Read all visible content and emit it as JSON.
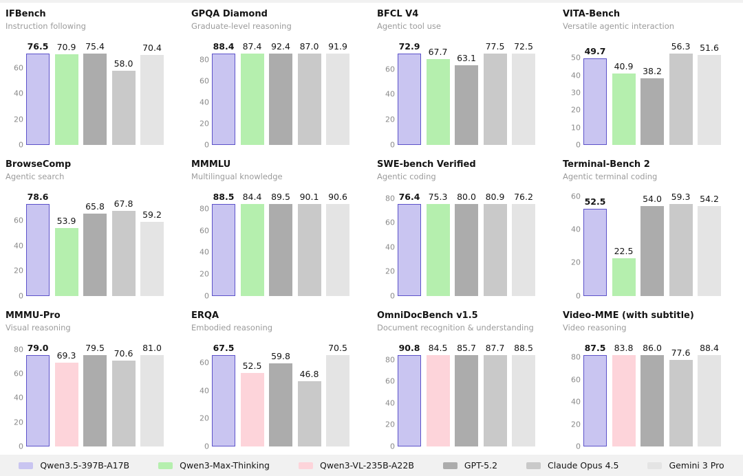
{
  "page": {
    "background": "#ffffff",
    "top_strip_color": "#f1f1f1",
    "legend_band_color": "#f1f1f1"
  },
  "models": [
    {
      "name": "Qwen3.5-397B-A17B",
      "fill": "#c9c5f1",
      "border": "#5b51c9",
      "highlight": true
    },
    {
      "name": "Qwen3-Max-Thinking",
      "fill": "#b5efae",
      "border": null,
      "highlight": false
    },
    {
      "name": "Qwen3-VL-235B-A22B",
      "fill": "#fdd4da",
      "border": null,
      "highlight": false
    },
    {
      "name": "GPT-5.2",
      "fill": "#acacac",
      "border": null,
      "highlight": false
    },
    {
      "name": "Claude Opus 4.5",
      "fill": "#c9c9c9",
      "border": null,
      "highlight": false
    },
    {
      "name": "Gemini 3 Pro",
      "fill": "#e4e4e4",
      "border": null,
      "highlight": false
    }
  ],
  "chart_data": [
    {
      "type": "bar",
      "title": "IFBench",
      "subtitle": "Instruction following",
      "yticks": [
        0,
        20,
        40,
        60
      ],
      "ylim": [
        0,
        80.3
      ],
      "grid": false,
      "legend_position": "bottom-shared",
      "bars": [
        {
          "model": "Qwen3.5-397B-A17B",
          "model_index": 0,
          "value": 76.5
        },
        {
          "model": "Qwen3-Max-Thinking",
          "model_index": 1,
          "value": 70.9
        },
        {
          "model": "GPT-5.2",
          "model_index": 3,
          "value": 75.4
        },
        {
          "model": "Claude Opus 4.5",
          "model_index": 4,
          "value": 58.0
        },
        {
          "model": "Gemini 3 Pro",
          "model_index": 5,
          "value": 70.4
        }
      ]
    },
    {
      "type": "bar",
      "title": "GPQA Diamond",
      "subtitle": "Graduate-level reasoning",
      "yticks": [
        0,
        20,
        40,
        60,
        80
      ],
      "ylim": [
        0,
        97.0
      ],
      "grid": false,
      "legend_position": "bottom-shared",
      "bars": [
        {
          "model": "Qwen3.5-397B-A17B",
          "model_index": 0,
          "value": 88.4
        },
        {
          "model": "Qwen3-Max-Thinking",
          "model_index": 1,
          "value": 87.4
        },
        {
          "model": "GPT-5.2",
          "model_index": 3,
          "value": 92.4
        },
        {
          "model": "Claude Opus 4.5",
          "model_index": 4,
          "value": 87.0
        },
        {
          "model": "Gemini 3 Pro",
          "model_index": 5,
          "value": 91.9
        }
      ]
    },
    {
      "type": "bar",
      "title": "BFCL V4",
      "subtitle": "Agentic tool use",
      "yticks": [
        0,
        20,
        40,
        60
      ],
      "ylim": [
        0,
        81.4
      ],
      "grid": false,
      "legend_position": "bottom-shared",
      "bars": [
        {
          "model": "Qwen3.5-397B-A17B",
          "model_index": 0,
          "value": 72.9
        },
        {
          "model": "Qwen3-Max-Thinking",
          "model_index": 1,
          "value": 67.7
        },
        {
          "model": "GPT-5.2",
          "model_index": 3,
          "value": 63.1
        },
        {
          "model": "Claude Opus 4.5",
          "model_index": 4,
          "value": 77.5
        },
        {
          "model": "Gemini 3 Pro",
          "model_index": 5,
          "value": 72.5
        }
      ]
    },
    {
      "type": "bar",
      "title": "VITA-Bench",
      "subtitle": "Versatile agentic interaction",
      "yticks": [
        0,
        10,
        20,
        30,
        40,
        50
      ],
      "ylim": [
        0,
        59.1
      ],
      "grid": false,
      "legend_position": "bottom-shared",
      "bars": [
        {
          "model": "Qwen3.5-397B-A17B",
          "model_index": 0,
          "value": 49.7
        },
        {
          "model": "Qwen3-Max-Thinking",
          "model_index": 1,
          "value": 40.9
        },
        {
          "model": "GPT-5.2",
          "model_index": 3,
          "value": 38.2
        },
        {
          "model": "Claude Opus 4.5",
          "model_index": 4,
          "value": 56.3
        },
        {
          "model": "Gemini 3 Pro",
          "model_index": 5,
          "value": 51.6
        }
      ]
    },
    {
      "type": "bar",
      "title": "BrowseComp",
      "subtitle": "Agentic search",
      "yticks": [
        0,
        20,
        40,
        60
      ],
      "ylim": [
        0,
        82.5
      ],
      "grid": false,
      "legend_position": "bottom-shared",
      "bars": [
        {
          "model": "Qwen3.5-397B-A17B",
          "model_index": 0,
          "value": 78.6
        },
        {
          "model": "Qwen3-Max-Thinking",
          "model_index": 1,
          "value": 53.9
        },
        {
          "model": "GPT-5.2",
          "model_index": 3,
          "value": 65.8
        },
        {
          "model": "Claude Opus 4.5",
          "model_index": 4,
          "value": 67.8
        },
        {
          "model": "Gemini 3 Pro",
          "model_index": 5,
          "value": 59.2
        }
      ]
    },
    {
      "type": "bar",
      "title": "MMMLU",
      "subtitle": "Multilingual knowledge",
      "yticks": [
        0,
        20,
        40,
        60,
        80
      ],
      "ylim": [
        0,
        95.1
      ],
      "grid": false,
      "legend_position": "bottom-shared",
      "bars": [
        {
          "model": "Qwen3.5-397B-A17B",
          "model_index": 0,
          "value": 88.5
        },
        {
          "model": "Qwen3-Max-Thinking",
          "model_index": 1,
          "value": 84.4
        },
        {
          "model": "GPT-5.2",
          "model_index": 3,
          "value": 89.5
        },
        {
          "model": "Claude Opus 4.5",
          "model_index": 4,
          "value": 90.1
        },
        {
          "model": "Gemini 3 Pro",
          "model_index": 5,
          "value": 90.6
        }
      ]
    },
    {
      "type": "bar",
      "title": "SWE-bench Verified",
      "subtitle": "Agentic coding",
      "yticks": [
        0,
        20,
        40,
        60,
        80
      ],
      "ylim": [
        0,
        84.9
      ],
      "grid": false,
      "legend_position": "bottom-shared",
      "bars": [
        {
          "model": "Qwen3.5-397B-A17B",
          "model_index": 0,
          "value": 76.4
        },
        {
          "model": "Qwen3-Max-Thinking",
          "model_index": 1,
          "value": 75.3
        },
        {
          "model": "GPT-5.2",
          "model_index": 3,
          "value": 80.0
        },
        {
          "model": "Claude Opus 4.5",
          "model_index": 4,
          "value": 80.9
        },
        {
          "model": "Gemini 3 Pro",
          "model_index": 5,
          "value": 76.2
        }
      ]
    },
    {
      "type": "bar",
      "title": "Terminal-Bench 2",
      "subtitle": "Agentic terminal coding",
      "yticks": [
        0,
        20,
        40,
        60
      ],
      "ylim": [
        0,
        62.3
      ],
      "grid": false,
      "legend_position": "bottom-shared",
      "bars": [
        {
          "model": "Qwen3.5-397B-A17B",
          "model_index": 0,
          "value": 52.5
        },
        {
          "model": "Qwen3-Max-Thinking",
          "model_index": 1,
          "value": 22.5
        },
        {
          "model": "GPT-5.2",
          "model_index": 3,
          "value": 54.0
        },
        {
          "model": "Claude Opus 4.5",
          "model_index": 4,
          "value": 59.3
        },
        {
          "model": "Gemini 3 Pro",
          "model_index": 5,
          "value": 54.2
        }
      ]
    },
    {
      "type": "bar",
      "title": "MMMU-Pro",
      "subtitle": "Visual reasoning",
      "yticks": [
        0,
        20,
        40,
        60,
        80
      ],
      "ylim": [
        0,
        85.1
      ],
      "grid": false,
      "legend_position": "bottom-shared",
      "bars": [
        {
          "model": "Qwen3.5-397B-A17B",
          "model_index": 0,
          "value": 79.0
        },
        {
          "model": "Qwen3-VL-235B-A22B",
          "model_index": 2,
          "value": 69.3
        },
        {
          "model": "GPT-5.2",
          "model_index": 3,
          "value": 79.5
        },
        {
          "model": "Claude Opus 4.5",
          "model_index": 4,
          "value": 70.6
        },
        {
          "model": "Gemini 3 Pro",
          "model_index": 5,
          "value": 81.0
        }
      ]
    },
    {
      "type": "bar",
      "title": "ERQA",
      "subtitle": "Embodied reasoning",
      "yticks": [
        0,
        20,
        40,
        60
      ],
      "ylim": [
        0,
        74.0
      ],
      "grid": false,
      "legend_position": "bottom-shared",
      "bars": [
        {
          "model": "Qwen3.5-397B-A17B",
          "model_index": 0,
          "value": 67.5
        },
        {
          "model": "Qwen3-VL-235B-A22B",
          "model_index": 2,
          "value": 52.5
        },
        {
          "model": "GPT-5.2",
          "model_index": 3,
          "value": 59.8
        },
        {
          "model": "Claude Opus 4.5",
          "model_index": 4,
          "value": 46.8
        },
        {
          "model": "Gemini 3 Pro",
          "model_index": 5,
          "value": 70.5
        }
      ]
    },
    {
      "type": "bar",
      "title": "OmniDocBench v1.5",
      "subtitle": "Document recognition & understanding",
      "yticks": [
        0,
        20,
        40,
        60,
        80
      ],
      "ylim": [
        0,
        95.3
      ],
      "grid": false,
      "legend_position": "bottom-shared",
      "bars": [
        {
          "model": "Qwen3.5-397B-A17B",
          "model_index": 0,
          "value": 90.8
        },
        {
          "model": "Qwen3-VL-235B-A22B",
          "model_index": 2,
          "value": 84.5
        },
        {
          "model": "GPT-5.2",
          "model_index": 3,
          "value": 85.7
        },
        {
          "model": "Claude Opus 4.5",
          "model_index": 4,
          "value": 87.7
        },
        {
          "model": "Gemini 3 Pro",
          "model_index": 5,
          "value": 88.5
        }
      ]
    },
    {
      "type": "bar",
      "title": "Video-MME (with subtitle)",
      "subtitle": "Video reasoning",
      "yticks": [
        0,
        20,
        40,
        60,
        80
      ],
      "ylim": [
        0,
        92.8
      ],
      "grid": false,
      "legend_position": "bottom-shared",
      "bars": [
        {
          "model": "Qwen3.5-397B-A17B",
          "model_index": 0,
          "value": 87.5
        },
        {
          "model": "Qwen3-VL-235B-A22B",
          "model_index": 2,
          "value": 83.8
        },
        {
          "model": "GPT-5.2",
          "model_index": 3,
          "value": 86.0
        },
        {
          "model": "Claude Opus 4.5",
          "model_index": 4,
          "value": 77.6
        },
        {
          "model": "Gemini 3 Pro",
          "model_index": 5,
          "value": 88.4
        }
      ]
    }
  ],
  "legend": {
    "labels": [
      "Qwen3.5-397B-A17B",
      "Qwen3-Max-Thinking",
      "Qwen3-VL-235B-A22B",
      "GPT-5.2",
      "Claude Opus 4.5",
      "Gemini 3 Pro"
    ]
  }
}
